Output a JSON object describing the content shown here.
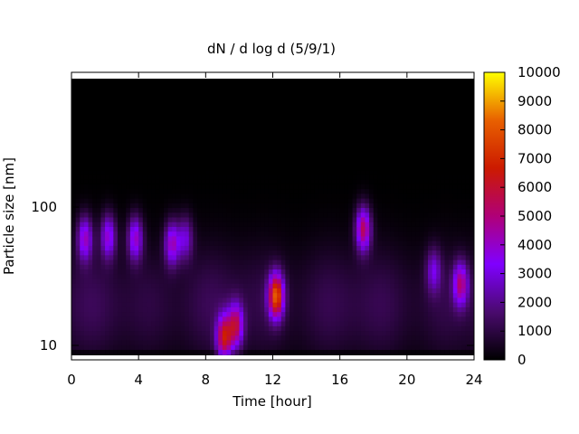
{
  "chart_data": {
    "type": "heatmap",
    "title": "dN / d log d (5/9/1)",
    "xlabel": "Time [hour]",
    "ylabel": "Particle size [nm]",
    "xlim": [
      0,
      24
    ],
    "ylim": [
      8,
      900
    ],
    "y_scale": "log",
    "x_ticks": [
      0,
      4,
      8,
      12,
      16,
      20,
      24
    ],
    "y_ticks": [
      10,
      100
    ],
    "colorbar": {
      "range": [
        0,
        10000
      ],
      "ticks": [
        0,
        1000,
        2000,
        3000,
        4000,
        5000,
        6000,
        7000,
        8000,
        9000,
        10000
      ],
      "palette": [
        "#000000",
        "#4a0a6e",
        "#8000ff",
        "#b00078",
        "#cc1a00",
        "#e86000",
        "#ffff00"
      ]
    },
    "background_band": {
      "center_nm": 20,
      "peak_value": 1350
    },
    "features": [
      {
        "time_h": 0.8,
        "size_nm": 60,
        "value": 3900
      },
      {
        "time_h": 2.2,
        "size_nm": 62,
        "value": 3700
      },
      {
        "time_h": 3.8,
        "size_nm": 60,
        "value": 3900
      },
      {
        "time_h": 6.0,
        "size_nm": 55,
        "value": 4000
      },
      {
        "time_h": 6.8,
        "size_nm": 60,
        "value": 2700
      },
      {
        "time_h": 9.1,
        "size_nm": 11.5,
        "value": 5600
      },
      {
        "time_h": 9.8,
        "size_nm": 14,
        "value": 4800
      },
      {
        "time_h": 12.2,
        "size_nm": 23,
        "value": 7400
      },
      {
        "time_h": 17.4,
        "size_nm": 70,
        "value": 5200
      },
      {
        "time_h": 21.6,
        "size_nm": 35,
        "value": 2500
      },
      {
        "time_h": 23.2,
        "size_nm": 28,
        "value": 4300
      }
    ]
  }
}
